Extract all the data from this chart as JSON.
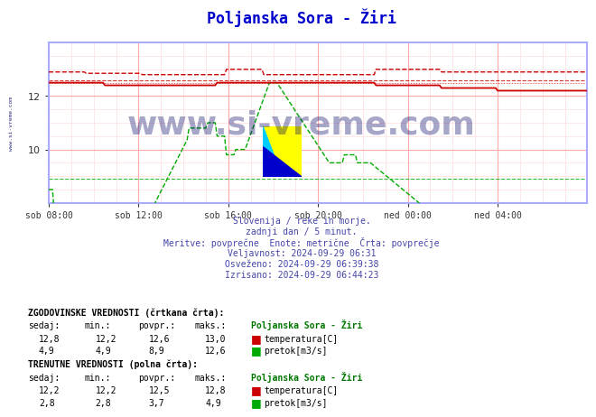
{
  "title": "Poljanska Sora - Žiri",
  "title_color": "#0000cc",
  "bg_color": "#ffffff",
  "plot_bg_color": "#ffffff",
  "grid_color_major": "#ffaaaa",
  "grid_color_minor": "#ffdddd",
  "x_labels": [
    "sob 08:00",
    "sob 12:00",
    "sob 16:00",
    "sob 20:00",
    "ned 00:00",
    "ned 04:00"
  ],
  "x_ticks_pos": [
    0,
    48,
    96,
    144,
    192,
    240
  ],
  "total_points": 289,
  "y_min": 8.0,
  "y_max": 14.0,
  "y_ticks": [
    10,
    12
  ],
  "temp_color": "#cc0000",
  "flow_color": "#00aa00",
  "axis_spine_color": "#aaaaff",
  "watermark_color": "#000066",
  "info_text_color": "#4444aa",
  "info_lines": [
    "Slovenija / reke in morje.",
    "zadnji dan / 5 minut.",
    "Meritve: povprečne  Enote: metrične  Črta: povprečje",
    "Veljavnost: 2024-09-29 06:31",
    "Osveženo: 2024-09-29 06:39:38",
    "Izrisano: 2024-09-29 06:44:23"
  ],
  "table_text_color": "#000000",
  "station_name": "Poljanska Sora - Žiri",
  "station_name_color": "#007700",
  "hist_temp_sedaj": 12.8,
  "hist_temp_min": 12.2,
  "hist_temp_povpr": 12.6,
  "hist_temp_maks": 13.0,
  "hist_flow_sedaj": 4.9,
  "hist_flow_min": 4.9,
  "hist_flow_povpr": 8.9,
  "hist_flow_maks": 12.6,
  "curr_temp_sedaj": 12.2,
  "curr_temp_min": 12.2,
  "curr_temp_povpr": 12.5,
  "curr_temp_maks": 12.8,
  "curr_flow_sedaj": 2.8,
  "curr_flow_min": 2.8,
  "curr_flow_povpr": 3.7,
  "curr_flow_maks": 4.9,
  "logo_yellow": "#ffff00",
  "logo_cyan": "#00ccff",
  "logo_blue": "#0000cc"
}
